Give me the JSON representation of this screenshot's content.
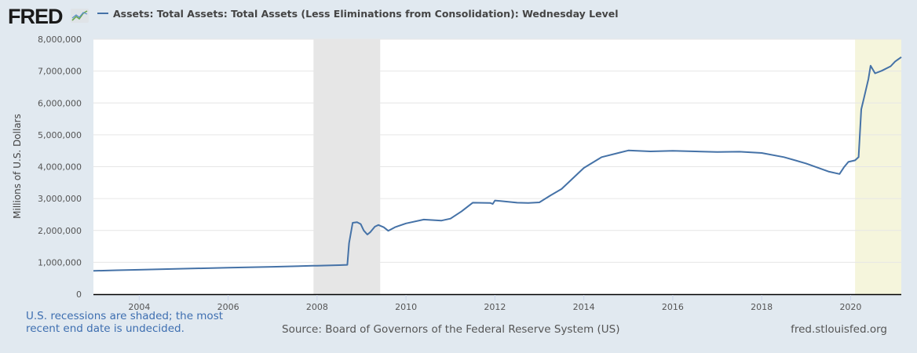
{
  "header": {
    "logo_text": "FRED",
    "logo_icon": "line-chart-icon",
    "series_title": "Assets: Total Assets: Total Assets (Less Eliminations from Consolidation): Wednesday Level"
  },
  "footer": {
    "recession_note_line1": "U.S. recessions are shaded; the most",
    "recession_note_line2": "recent end date is undecided.",
    "source": "Source: Board of Governors of the Federal Reserve System (US)",
    "url": "fred.stlouisfed.org"
  },
  "colors": {
    "line": "#4572a7",
    "recession_shade": "#e6e6e6",
    "recent_recession_shade": "#f5f5dc",
    "background": "#e1e9f0",
    "grid": "#e6e6e6"
  },
  "chart_data": {
    "type": "line",
    "title": "Assets: Total Assets: Total Assets (Less Eliminations from Consolidation): Wednesday Level",
    "xlabel": "",
    "ylabel": "Millions of U.S. Dollars",
    "xlim": [
      2002.97,
      2021.14
    ],
    "ylim": [
      0,
      8000000
    ],
    "grid": true,
    "legend": "top-left",
    "x_ticks": [
      2004,
      2006,
      2008,
      2010,
      2012,
      2014,
      2016,
      2018,
      2020
    ],
    "x_tick_labels": [
      "2004",
      "2006",
      "2008",
      "2010",
      "2012",
      "2014",
      "2016",
      "2018",
      "2020"
    ],
    "y_ticks": [
      0,
      1000000,
      2000000,
      3000000,
      4000000,
      5000000,
      6000000,
      7000000,
      8000000
    ],
    "y_tick_labels": [
      "0",
      "1,000,000",
      "2,000,000",
      "3,000,000",
      "4,000,000",
      "5,000,000",
      "6,000,000",
      "7,000,000",
      "8,000,000"
    ],
    "recessions": [
      {
        "start": 2007.92,
        "end": 2009.42
      },
      {
        "start": 2020.1,
        "end": 2021.14
      }
    ],
    "series": [
      {
        "name": "Assets: Total Assets: Total Assets (Less Eliminations from Consolidation): Wednesday Level",
        "x": [
          2002.97,
          2003.5,
          2004.0,
          2005.0,
          2006.0,
          2007.0,
          2007.9,
          2008.0,
          2008.5,
          2008.68,
          2008.72,
          2008.8,
          2008.9,
          2008.98,
          2009.05,
          2009.13,
          2009.2,
          2009.3,
          2009.38,
          2009.5,
          2009.6,
          2009.75,
          2010.0,
          2010.4,
          2010.8,
          2011.0,
          2011.25,
          2011.5,
          2011.9,
          2011.95,
          2012.0,
          2012.5,
          2012.75,
          2013.0,
          2013.25,
          2013.5,
          2014.0,
          2014.4,
          2014.8,
          2015.0,
          2015.5,
          2016.0,
          2016.5,
          2017.0,
          2017.5,
          2018.0,
          2018.5,
          2019.0,
          2019.5,
          2019.75,
          2019.85,
          2019.95,
          2020.1,
          2020.18,
          2020.24,
          2020.3,
          2020.4,
          2020.45,
          2020.55,
          2020.7,
          2020.9,
          2021.0,
          2021.14
        ],
        "values": [
          730000,
          750000,
          765000,
          800000,
          830000,
          860000,
          890000,
          890000,
          910000,
          920000,
          1600000,
          2240000,
          2260000,
          2200000,
          2000000,
          1870000,
          1950000,
          2120000,
          2170000,
          2100000,
          1990000,
          2100000,
          2220000,
          2340000,
          2310000,
          2370000,
          2600000,
          2870000,
          2860000,
          2830000,
          2940000,
          2870000,
          2860000,
          2880000,
          3100000,
          3300000,
          3960000,
          4300000,
          4440000,
          4510000,
          4480000,
          4500000,
          4480000,
          4460000,
          4470000,
          4430000,
          4300000,
          4100000,
          3850000,
          3770000,
          3980000,
          4150000,
          4200000,
          4300000,
          5800000,
          6150000,
          6750000,
          7170000,
          6930000,
          7010000,
          7150000,
          7300000,
          7440000
        ]
      }
    ]
  }
}
